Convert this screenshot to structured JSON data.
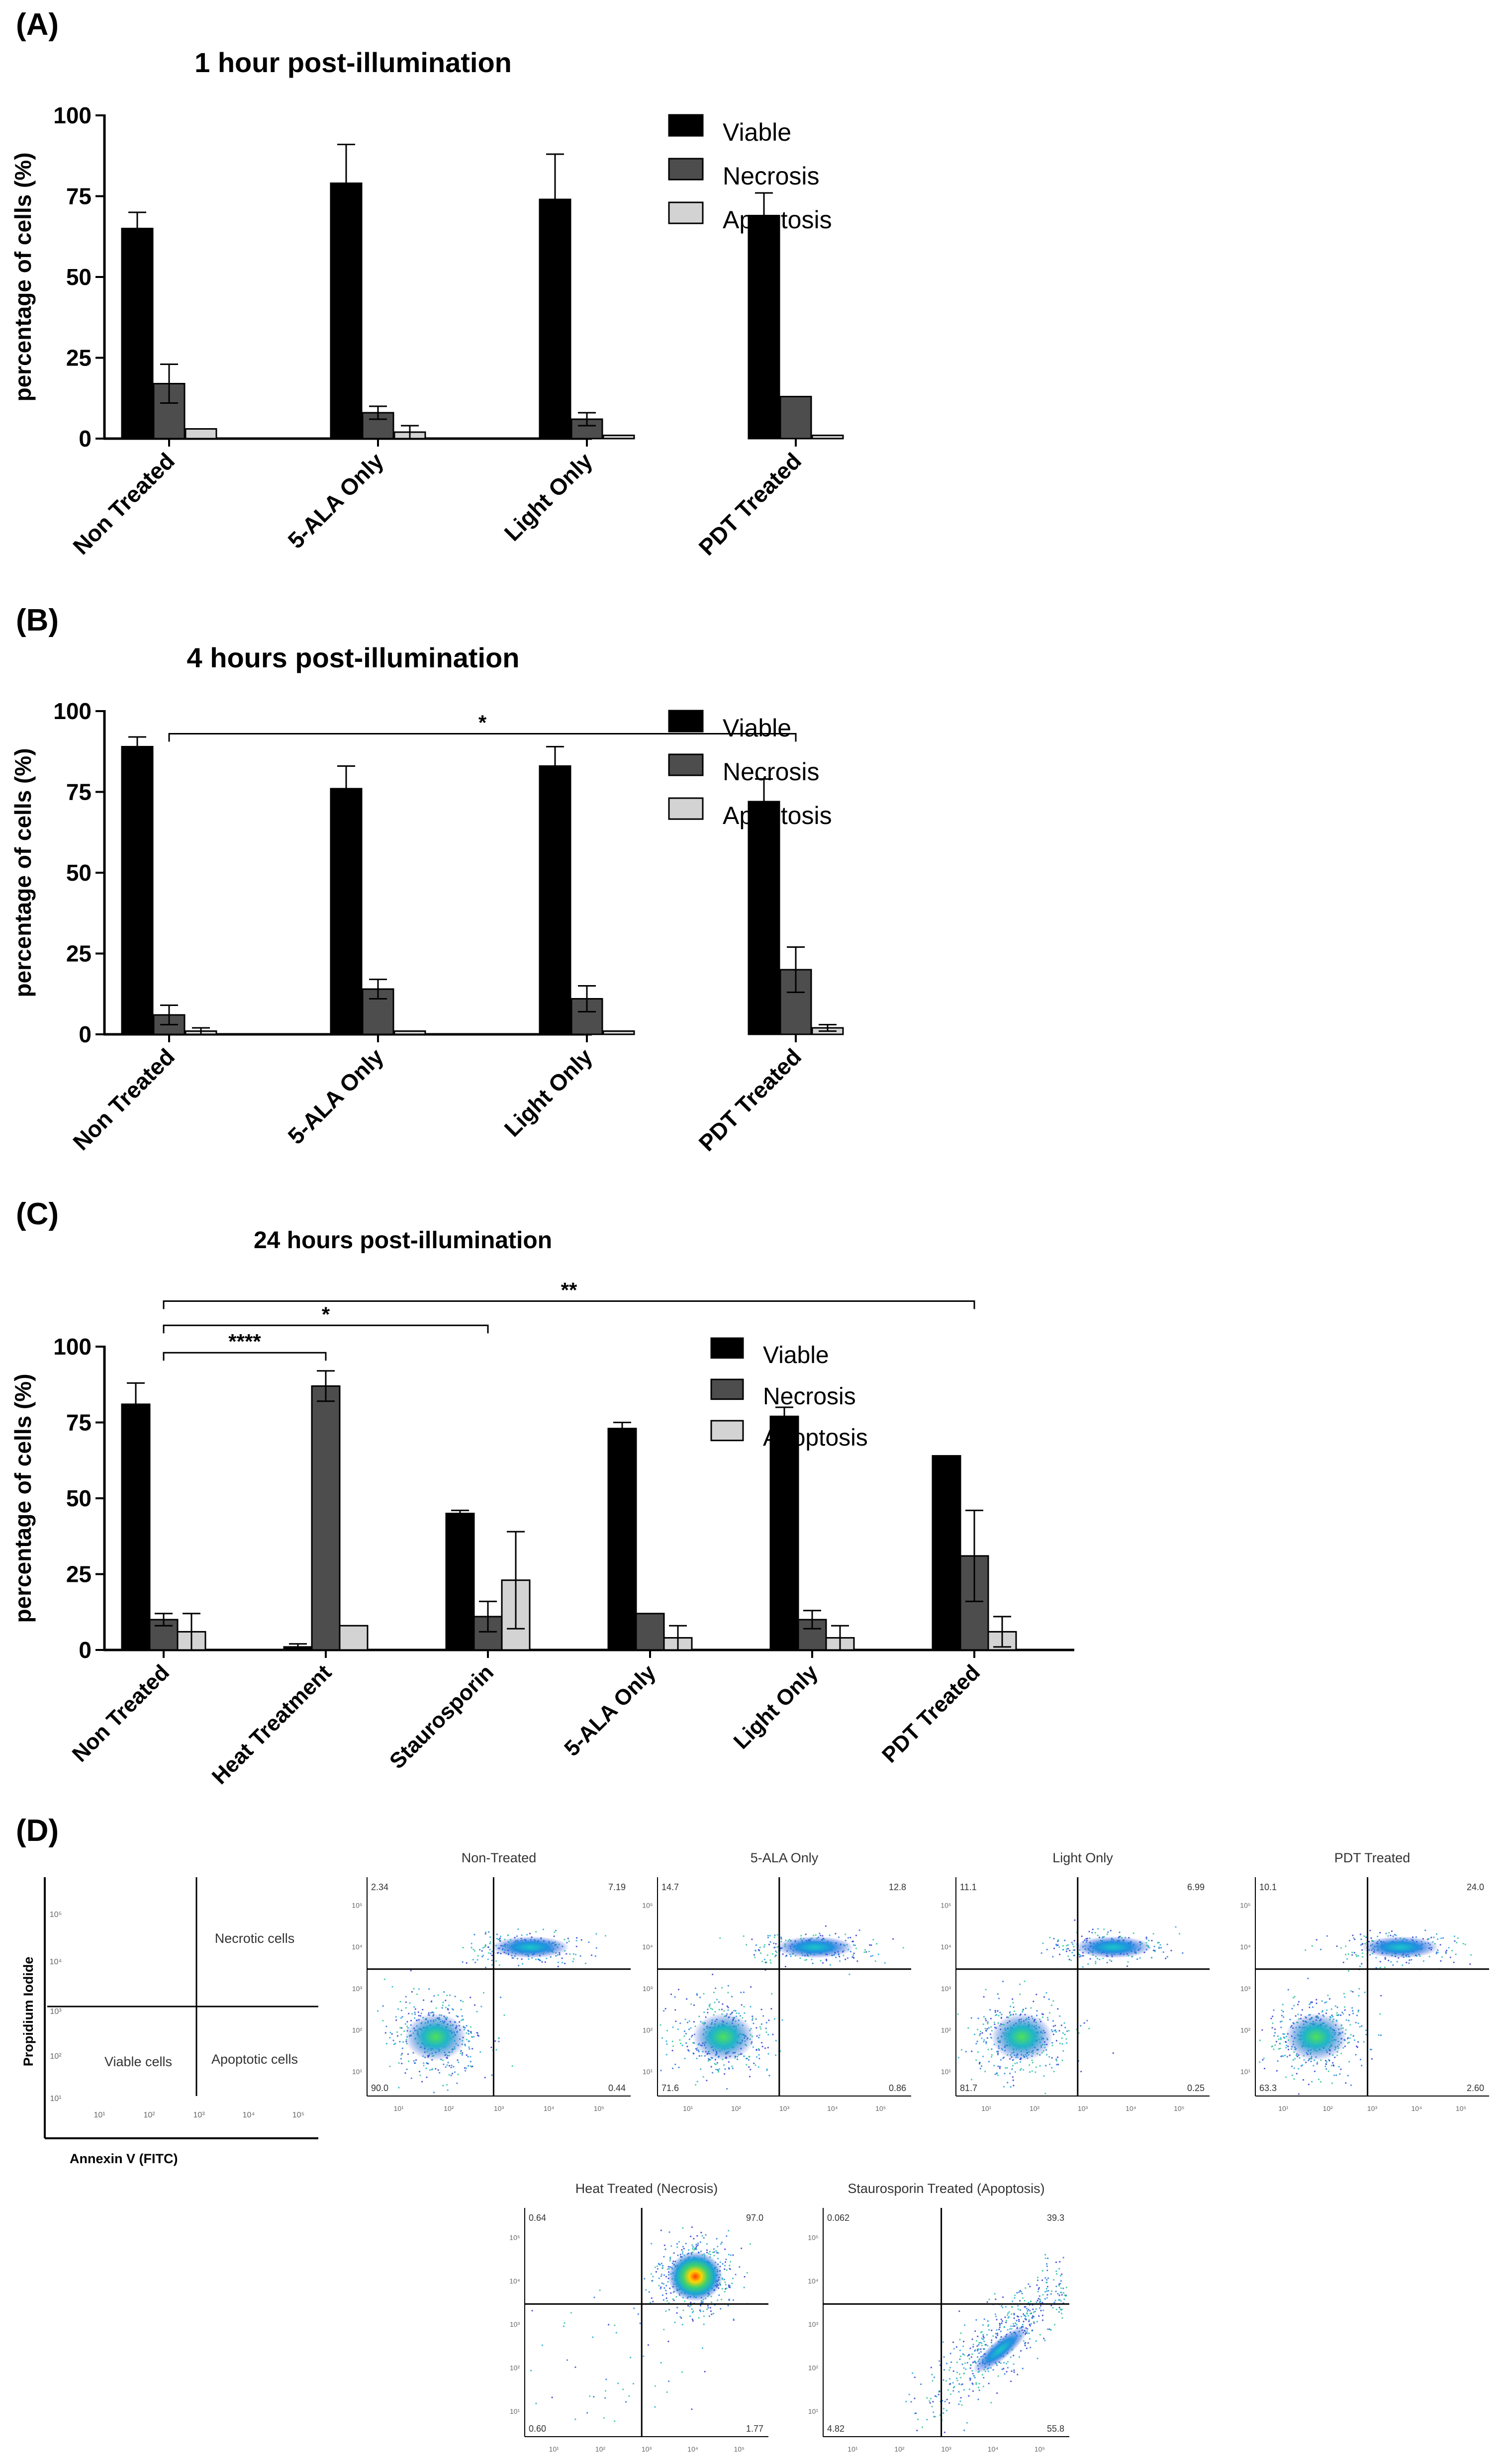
{
  "colors": {
    "viable": "#000000",
    "necrosis": "#4d4d4d",
    "apoptosis": "#d3d3d3",
    "axis": "#000000"
  },
  "chart_data": [
    {
      "panel": "(A)",
      "type": "bar",
      "title": "1 hour post-illumination",
      "ylabel": "percentage of cells (%)",
      "ylim": [
        0,
        100
      ],
      "yticks": [
        "0",
        "25",
        "50",
        "75",
        "100"
      ],
      "categories": [
        "Non Treated",
        "5-ALA Only",
        "Light Only",
        "PDT Treated"
      ],
      "series": [
        {
          "name": "Viable",
          "values": [
            65,
            79,
            74,
            69
          ],
          "errors": [
            5,
            12,
            14,
            7
          ]
        },
        {
          "name": "Necrosis",
          "values": [
            17,
            8,
            6,
            13
          ],
          "errors": [
            6,
            2,
            2,
            0
          ]
        },
        {
          "name": "Apoptosis",
          "values": [
            3,
            2,
            1,
            1
          ],
          "errors": [
            0,
            2,
            0,
            0
          ]
        }
      ],
      "annotations": []
    },
    {
      "panel": "(B)",
      "type": "bar",
      "title": "4 hours post-illumination",
      "ylabel": "percentage of cells (%)",
      "ylim": [
        0,
        100
      ],
      "yticks": [
        "0",
        "25",
        "50",
        "75",
        "100"
      ],
      "categories": [
        "Non Treated",
        "5-ALA Only",
        "Light Only",
        "PDT Treated"
      ],
      "series": [
        {
          "name": "Viable",
          "values": [
            89,
            76,
            83,
            72
          ],
          "errors": [
            3,
            7,
            6,
            7
          ]
        },
        {
          "name": "Necrosis",
          "values": [
            6,
            14,
            11,
            20
          ],
          "errors": [
            3,
            3,
            4,
            7
          ]
        },
        {
          "name": "Apoptosis",
          "values": [
            1,
            1,
            1,
            2
          ],
          "errors": [
            1,
            0,
            0,
            1
          ]
        }
      ],
      "annotations": [
        {
          "label": "*",
          "from_category": 0,
          "to_category": 3,
          "level": 93
        }
      ]
    },
    {
      "panel": "(C)",
      "type": "bar",
      "title": "24 hours post-illumination",
      "ylabel": "percentage of cells (%)",
      "ylim": [
        0,
        100
      ],
      "yticks": [
        "0",
        "25",
        "50",
        "75",
        "100"
      ],
      "categories": [
        "Non Treated",
        "Heat Treatment",
        "Staurosporin",
        "5-ALA Only",
        "Light Only",
        "PDT Treated"
      ],
      "series": [
        {
          "name": "Viable",
          "values": [
            81,
            1,
            45,
            73,
            77,
            64
          ],
          "errors": [
            7,
            1,
            1,
            2,
            3,
            0
          ]
        },
        {
          "name": "Necrosis",
          "values": [
            10,
            87,
            11,
            12,
            10,
            31
          ],
          "errors": [
            2,
            5,
            5,
            0,
            3,
            15
          ]
        },
        {
          "name": "Apoptosis",
          "values": [
            6,
            8,
            23,
            4,
            4,
            6
          ],
          "errors": [
            6,
            0,
            16,
            4,
            4,
            5
          ]
        }
      ],
      "annotations": [
        {
          "label": "****",
          "from_category": 0,
          "to_category": 1,
          "level": 98
        },
        {
          "label": "*",
          "from_category": 0,
          "to_category": 2,
          "level": 107
        },
        {
          "label": "**",
          "from_category": 0,
          "to_category": 5,
          "level": 115
        }
      ]
    }
  ],
  "legend": [
    "Viable",
    "Necrosis",
    "Apoptosis"
  ],
  "panel_d": {
    "label": "(D)",
    "schematic": {
      "xlabel": "Annexin V (FITC)",
      "ylabel": "Propidium Iodide",
      "quadrants": {
        "ul": "",
        "ur": "Necrotic cells",
        "ll": "Viable cells",
        "lr": "Apoptotic cells"
      }
    },
    "plots": [
      {
        "title": "Non-Treated",
        "ul": "2.34",
        "ur": "7.19",
        "ll": "90.0",
        "lr": "0.44",
        "population": "mixed"
      },
      {
        "title": "5-ALA Only",
        "ul": "14.7",
        "ur": "12.8",
        "ll": "71.6",
        "lr": "0.86",
        "population": "mixed"
      },
      {
        "title": "Light Only",
        "ul": "11.1",
        "ur": "6.99",
        "ll": "81.7",
        "lr": "0.25",
        "population": "mixed"
      },
      {
        "title": "PDT Treated",
        "ul": "10.1",
        "ur": "24.0",
        "ll": "63.3",
        "lr": "2.60",
        "population": "mixed"
      },
      {
        "title": "Heat Treated (Necrosis)",
        "ul": "0.64",
        "ur": "97.0",
        "ll": "0.60",
        "lr": "1.77",
        "population": "necrosis"
      },
      {
        "title": "Staurosporin Treated (Apoptosis)",
        "ul": "0.062",
        "ur": "39.3",
        "ll": "4.82",
        "lr": "55.8",
        "population": "apoptosis"
      }
    ],
    "x_ticks": [
      "10¹",
      "10²",
      "10³",
      "10⁴",
      "10⁵"
    ],
    "y_ticks": [
      "10¹",
      "10²",
      "10³",
      "10⁴",
      "10⁵"
    ]
  }
}
